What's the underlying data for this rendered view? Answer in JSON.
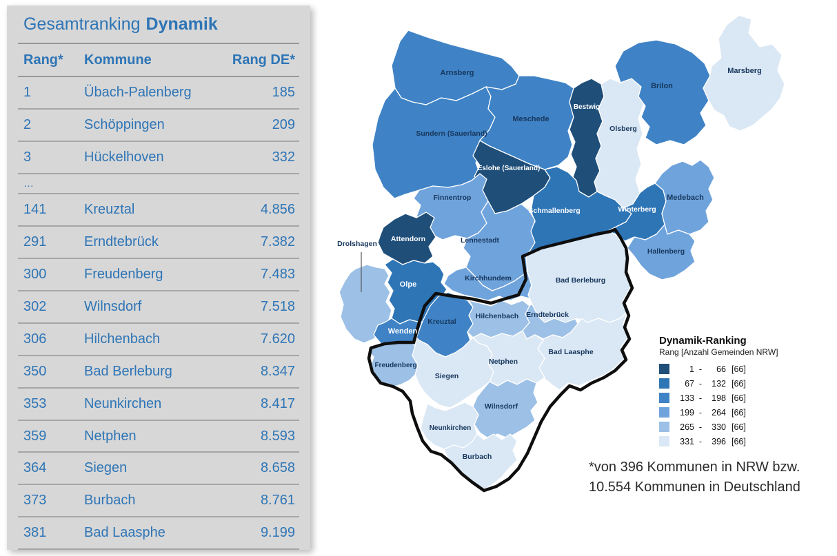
{
  "chart_data": [
    {
      "type": "table",
      "title": "Gesamtranking Dynamik",
      "title_regular": "Gesamtranking",
      "title_bold": "Dynamik",
      "columns": [
        "Rang*",
        "Kommune",
        "Rang DE*"
      ],
      "rows": [
        [
          "1",
          "Übach-Palenberg",
          "185"
        ],
        [
          "2",
          "Schöppingen",
          "209"
        ],
        [
          "3",
          "Hückelhoven",
          "332"
        ],
        [
          "…",
          "",
          ""
        ],
        [
          "141",
          "Kreuztal",
          "4.856"
        ],
        [
          "291",
          "Erndtebrück",
          "7.382"
        ],
        [
          "300",
          "Freudenberg",
          "7.483"
        ],
        [
          "302",
          "Wilnsdorf",
          "7.518"
        ],
        [
          "306",
          "Hilchenbach",
          "7.620"
        ],
        [
          "350",
          "Bad Berleburg",
          "8.347"
        ],
        [
          "353",
          "Neunkirchen",
          "8.417"
        ],
        [
          "359",
          "Netphen",
          "8.593"
        ],
        [
          "364",
          "Siegen",
          "8.658"
        ],
        [
          "373",
          "Burbach",
          "8.761"
        ],
        [
          "381",
          "Bad Laasphe",
          "9.199"
        ]
      ]
    },
    {
      "type": "choropleth",
      "title": "Dynamik-Ranking",
      "legend_subtitle": "Rang  [Anzahl Gemeinden NRW]",
      "classes": [
        {
          "from": "1",
          "to": "66",
          "count": "[66]",
          "color": "#1F4E79"
        },
        {
          "from": "67",
          "to": "132",
          "count": "[66]",
          "color": "#2E75B6"
        },
        {
          "from": "133",
          "to": "198",
          "count": "[66]",
          "color": "#3F83C6"
        },
        {
          "from": "199",
          "to": "264",
          "count": "[66]",
          "color": "#6FA3DC"
        },
        {
          "from": "265",
          "to": "330",
          "count": "[66]",
          "color": "#9CC0E6"
        },
        {
          "from": "331",
          "to": "396",
          "count": "[66]",
          "color": "#DAE7F4"
        }
      ],
      "regions": [
        {
          "name": "Arnsberg",
          "class": 3,
          "label_style": "dark"
        },
        {
          "name": "Sundern (Sauerland)",
          "class": 3,
          "label_style": "dark"
        },
        {
          "name": "Meschede",
          "class": 3,
          "label_style": "dark"
        },
        {
          "name": "Bestwig",
          "class": 1,
          "label_style": "light"
        },
        {
          "name": "Olsberg",
          "class": 6,
          "label_style": "dark"
        },
        {
          "name": "Brilon",
          "class": 3,
          "label_style": "dark"
        },
        {
          "name": "Marsberg",
          "class": 6,
          "label_style": "dark"
        },
        {
          "name": "Eslohe (Sauerland)",
          "class": 1,
          "label_style": "light"
        },
        {
          "name": "Schmallenberg",
          "class": 2,
          "label_style": "light"
        },
        {
          "name": "Winterberg",
          "class": 2,
          "label_style": "light"
        },
        {
          "name": "Medebach",
          "class": 4,
          "label_style": "dark"
        },
        {
          "name": "Hallenberg",
          "class": 4,
          "label_style": "dark"
        },
        {
          "name": "Finnentrop",
          "class": 4,
          "label_style": "dark"
        },
        {
          "name": "Lennestadt",
          "class": 4,
          "label_style": "dark"
        },
        {
          "name": "Attendorn",
          "class": 1,
          "label_style": "light"
        },
        {
          "name": "Drolshagen",
          "class": 5,
          "label_style": "dark"
        },
        {
          "name": "Olpe",
          "class": 2,
          "label_style": "light"
        },
        {
          "name": "Kirchhundem",
          "class": 4,
          "label_style": "dark"
        },
        {
          "name": "Wenden",
          "class": 3,
          "label_style": "light"
        },
        {
          "name": "Kreuztal",
          "class": 3,
          "label_style": "dark"
        },
        {
          "name": "Hilchenbach",
          "class": 5,
          "label_style": "dark"
        },
        {
          "name": "Erndtebrück",
          "class": 5,
          "label_style": "dark"
        },
        {
          "name": "Bad Berleburg",
          "class": 6,
          "label_style": "dark"
        },
        {
          "name": "Bad Laasphe",
          "class": 6,
          "label_style": "dark"
        },
        {
          "name": "Netphen",
          "class": 6,
          "label_style": "dark"
        },
        {
          "name": "Siegen",
          "class": 6,
          "label_style": "dark"
        },
        {
          "name": "Freudenberg",
          "class": 5,
          "label_style": "dark"
        },
        {
          "name": "Wilnsdorf",
          "class": 5,
          "label_style": "dark"
        },
        {
          "name": "Neunkirchen",
          "class": 6,
          "label_style": "dark"
        },
        {
          "name": "Burbach",
          "class": 6,
          "label_style": "dark"
        }
      ]
    }
  ],
  "footnote": [
    "*von 396 Kommunen in NRW bzw.",
    "10.554 Kommunen in Deutschland"
  ]
}
